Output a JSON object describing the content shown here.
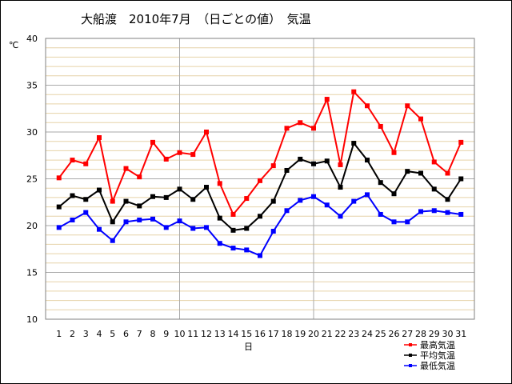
{
  "chart_data": {
    "type": "line",
    "title": "大船渡　2010年7月　（日ごとの値）　気温",
    "ylabel": "℃",
    "xlabel": "日",
    "ylim": [
      10,
      40
    ],
    "y_ticks": [
      10,
      15,
      20,
      25,
      30,
      35,
      40
    ],
    "y_minor_step": 1,
    "grid": true,
    "legend_position": "bottom-right",
    "x": [
      1,
      2,
      3,
      4,
      5,
      6,
      7,
      8,
      9,
      10,
      11,
      12,
      13,
      14,
      15,
      16,
      17,
      18,
      19,
      20,
      21,
      22,
      23,
      24,
      25,
      26,
      27,
      28,
      29,
      30,
      31
    ],
    "series": [
      {
        "name": "最高気温",
        "color": "#ff0000",
        "values": [
          25.1,
          27.0,
          26.6,
          29.4,
          22.6,
          26.1,
          25.2,
          28.9,
          27.1,
          27.8,
          27.6,
          30.0,
          24.5,
          21.2,
          22.9,
          24.8,
          26.4,
          30.4,
          31.0,
          30.4,
          33.5,
          26.5,
          34.3,
          32.8,
          30.6,
          27.8,
          32.8,
          31.4,
          26.8,
          25.6,
          28.9
        ]
      },
      {
        "name": "平均気温",
        "color": "#000000",
        "values": [
          22.0,
          23.2,
          22.8,
          23.8,
          20.4,
          22.6,
          22.1,
          23.1,
          23.0,
          23.9,
          22.8,
          24.1,
          20.8,
          19.5,
          19.7,
          21.0,
          22.6,
          25.9,
          27.1,
          26.6,
          26.9,
          24.1,
          28.8,
          27.0,
          24.6,
          23.4,
          25.8,
          25.6,
          23.9,
          22.8,
          25.0
        ]
      },
      {
        "name": "最低気温",
        "color": "#0000ff",
        "values": [
          19.8,
          20.6,
          21.4,
          19.6,
          18.4,
          20.4,
          20.6,
          20.7,
          19.8,
          20.5,
          19.7,
          19.8,
          18.1,
          17.6,
          17.4,
          16.8,
          19.4,
          21.6,
          22.7,
          23.1,
          22.2,
          21.0,
          22.6,
          23.3,
          21.2,
          20.4,
          20.4,
          21.5,
          21.6,
          21.4,
          21.2
        ]
      }
    ]
  }
}
